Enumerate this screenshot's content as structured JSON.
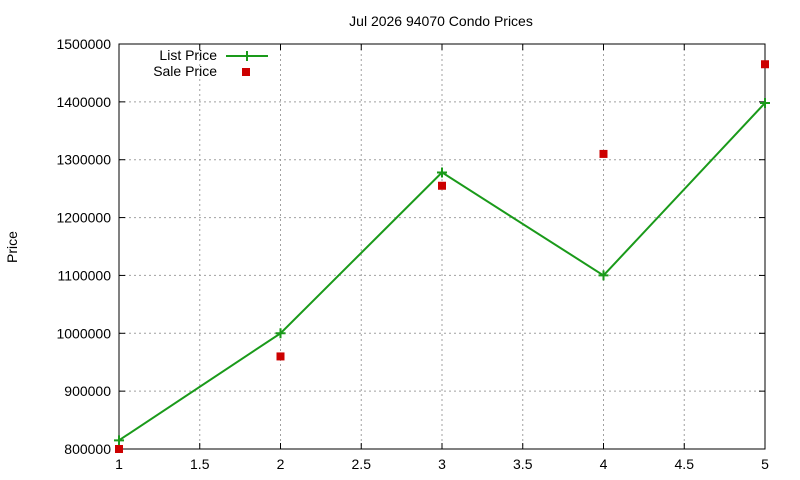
{
  "chart_data": {
    "type": "line",
    "title": "Jul 2026 94070 Condo Prices",
    "xlabel": "",
    "ylabel": "Price",
    "xlim": [
      1,
      5
    ],
    "ylim": [
      800000,
      1500000
    ],
    "x_ticks": [
      "1",
      "1.5",
      "2",
      "2.5",
      "3",
      "3.5",
      "4",
      "4.5",
      "5"
    ],
    "y_ticks": [
      "800000",
      "900000",
      "1000000",
      "1100000",
      "1200000",
      "1300000",
      "1400000",
      "1500000"
    ],
    "grid": true,
    "legend_position": "top-left",
    "series": [
      {
        "name": "List Price",
        "style": "line-with-plus-markers",
        "color": "#1a9a1a",
        "x": [
          1,
          2,
          3,
          4,
          5
        ],
        "values": [
          815000,
          1000000,
          1278000,
          1100000,
          1398000
        ]
      },
      {
        "name": "Sale Price",
        "style": "square-markers",
        "color": "#cc0000",
        "x": [
          1,
          2,
          3,
          4,
          5
        ],
        "values": [
          800000,
          960000,
          1255000,
          1310000,
          1465000
        ]
      }
    ]
  }
}
